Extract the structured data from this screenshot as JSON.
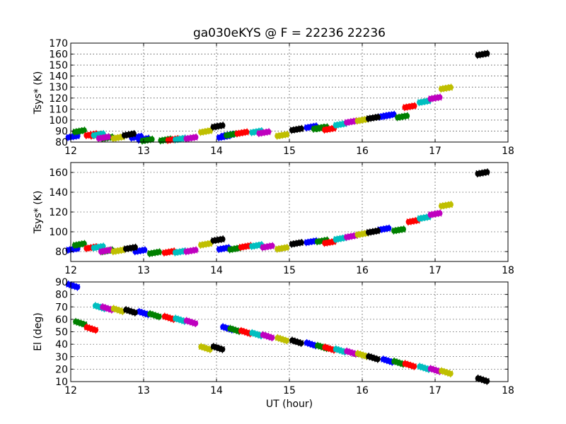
{
  "figure": {
    "title": "ga030eKYS @ F = 22236 22236",
    "xlabel": "UT (hour)"
  },
  "colors": {
    "blue": "#0000ff",
    "green": "#008000",
    "red": "#ff0000",
    "cyan": "#00bfbf",
    "magenta": "#bf00bf",
    "yellow": "#bfbf00",
    "black": "#000000"
  },
  "chart_data": [
    {
      "type": "scatter",
      "ylabel": "Tsys* (K)",
      "xlim": [
        12,
        18
      ],
      "ylim": [
        80,
        170
      ],
      "xticks": [
        "12",
        "13",
        "14",
        "15",
        "16",
        "17",
        "18"
      ],
      "yticks": [
        "80",
        "90",
        "100",
        "110",
        "120",
        "130",
        "140",
        "150",
        "160",
        "170"
      ],
      "grid": true,
      "series": [
        {
          "color": "blue",
          "points": [
            [
              12.03,
              84.9
            ],
            [
              12.9,
              84.5
            ],
            [
              13.0,
              82.6
            ],
            [
              14.1,
              84.8
            ],
            [
              14.15,
              86.2
            ],
            [
              15.3,
              93.8
            ],
            [
              16.3,
              103.6
            ],
            [
              16.37,
              104.4
            ]
          ]
        },
        {
          "color": "green",
          "points": [
            [
              12.12,
              89.9
            ],
            [
              12.5,
              83.8
            ],
            [
              13.05,
              81.8
            ],
            [
              13.3,
              82.0
            ],
            [
              14.2,
              86.8
            ],
            [
              15.4,
              92.6
            ],
            [
              15.45,
              93.0
            ],
            [
              16.55,
              103.1
            ]
          ]
        },
        {
          "color": "red",
          "points": [
            [
              12.28,
              86.7
            ],
            [
              12.35,
              86.3
            ],
            [
              13.4,
              82.3
            ],
            [
              14.35,
              88.4
            ],
            [
              15.55,
              91.8
            ],
            [
              16.65,
              112.2
            ]
          ]
        },
        {
          "color": "cyan",
          "points": [
            [
              12.38,
              86.8
            ],
            [
              13.5,
              82.8
            ],
            [
              14.55,
              89.4
            ],
            [
              15.7,
              96.0
            ],
            [
              16.85,
              116.7
            ]
          ]
        },
        {
          "color": "magenta",
          "points": [
            [
              12.45,
              84.0
            ],
            [
              13.65,
              83.7
            ],
            [
              14.65,
              88.6
            ],
            [
              15.85,
              98.5
            ],
            [
              17.0,
              120.0
            ]
          ]
        },
        {
          "color": "yellow",
          "points": [
            [
              12.65,
              84.0
            ],
            [
              13.85,
              89.6
            ],
            [
              14.9,
              86.2
            ],
            [
              16.0,
              100.0
            ],
            [
              17.15,
              129.0
            ]
          ]
        },
        {
          "color": "black",
          "points": [
            [
              12.8,
              86.8
            ],
            [
              14.02,
              94.4
            ],
            [
              15.1,
              91.5
            ],
            [
              16.15,
              102.0
            ],
            [
              17.65,
              159.8
            ]
          ]
        }
      ]
    },
    {
      "type": "scatter",
      "ylabel": "Tsys* (K)",
      "xlim": [
        12,
        18
      ],
      "ylim": [
        70,
        170
      ],
      "xticks": [
        "12",
        "13",
        "14",
        "15",
        "16",
        "17",
        "18"
      ],
      "yticks": [
        "80",
        "100",
        "120",
        "140",
        "160"
      ],
      "grid": true,
      "series": [
        {
          "color": "blue",
          "points": [
            [
              12.03,
              82.3
            ],
            [
              12.95,
              80.8
            ],
            [
              14.1,
              83.1
            ],
            [
              15.3,
              90.0
            ],
            [
              16.3,
              102.8
            ]
          ]
        },
        {
          "color": "green",
          "points": [
            [
              12.12,
              87.2
            ],
            [
              12.5,
              80.8
            ],
            [
              13.15,
              78.8
            ],
            [
              14.25,
              82.8
            ],
            [
              15.45,
              90.8
            ],
            [
              16.5,
              101.8
            ]
          ]
        },
        {
          "color": "red",
          "points": [
            [
              12.28,
              84.0
            ],
            [
              13.35,
              79.6
            ],
            [
              14.4,
              85.2
            ],
            [
              15.55,
              89.3
            ],
            [
              16.7,
              110.8
            ]
          ]
        },
        {
          "color": "cyan",
          "points": [
            [
              12.38,
              84.5
            ],
            [
              13.5,
              79.8
            ],
            [
              14.55,
              86.1
            ],
            [
              15.7,
              93.1
            ],
            [
              16.85,
              114.2
            ]
          ]
        },
        {
          "color": "magenta",
          "points": [
            [
              12.48,
              80.8
            ],
            [
              13.65,
              80.8
            ],
            [
              14.7,
              85.0
            ],
            [
              15.85,
              95.4
            ],
            [
              17.0,
              118.0
            ]
          ]
        },
        {
          "color": "yellow",
          "points": [
            [
              12.65,
              80.8
            ],
            [
              13.85,
              87.4
            ],
            [
              14.9,
              83.3
            ],
            [
              16.0,
              97.8
            ],
            [
              17.15,
              126.8
            ]
          ]
        },
        {
          "color": "black",
          "points": [
            [
              12.82,
              83.5
            ],
            [
              14.02,
              91.8
            ],
            [
              15.1,
              88.3
            ],
            [
              16.15,
              100.2
            ],
            [
              17.65,
              159.5
            ]
          ]
        }
      ]
    },
    {
      "type": "scatter",
      "ylabel": "El (deg)",
      "xlim": [
        12,
        18
      ],
      "ylim": [
        10,
        90
      ],
      "xticks": [
        "12",
        "13",
        "14",
        "15",
        "16",
        "17",
        "18"
      ],
      "yticks": [
        "10",
        "20",
        "30",
        "40",
        "50",
        "60",
        "70",
        "80",
        "90"
      ],
      "grid": true,
      "series": [
        {
          "color": "blue",
          "points": [
            [
              12.03,
              87.0
            ],
            [
              13.0,
              65.0
            ],
            [
              14.15,
              52.8
            ],
            [
              15.3,
              40.0
            ],
            [
              16.35,
              26.8
            ]
          ]
        },
        {
          "color": "green",
          "points": [
            [
              12.13,
              57.0
            ],
            [
              13.15,
              63.3
            ],
            [
              14.25,
              51.5
            ],
            [
              15.45,
              37.8
            ],
            [
              16.5,
              25.2
            ]
          ]
        },
        {
          "color": "red",
          "points": [
            [
              12.28,
              52.5
            ],
            [
              13.35,
              61.2
            ],
            [
              14.4,
              49.7
            ],
            [
              15.55,
              36.5
            ],
            [
              16.65,
              23.3
            ]
          ]
        },
        {
          "color": "cyan",
          "points": [
            [
              12.4,
              69.8
            ],
            [
              13.5,
              59.6
            ],
            [
              14.55,
              48.0
            ],
            [
              15.7,
              35.0
            ],
            [
              16.85,
              21.0
            ]
          ]
        },
        {
          "color": "magenta",
          "points": [
            [
              12.5,
              68.8
            ],
            [
              13.65,
              57.8
            ],
            [
              14.7,
              46.4
            ],
            [
              15.85,
              33.3
            ],
            [
              17.0,
              19.3
            ]
          ]
        },
        {
          "color": "yellow",
          "points": [
            [
              12.65,
              67.5
            ],
            [
              13.85,
              36.9
            ],
            [
              14.9,
              44.0
            ],
            [
              16.0,
              31.4
            ],
            [
              17.15,
              17.5
            ]
          ]
        },
        {
          "color": "black",
          "points": [
            [
              12.82,
              66.5
            ],
            [
              14.02,
              37.0
            ],
            [
              15.1,
              42.0
            ],
            [
              16.15,
              29.1
            ],
            [
              17.65,
              11.5
            ]
          ]
        }
      ]
    }
  ]
}
